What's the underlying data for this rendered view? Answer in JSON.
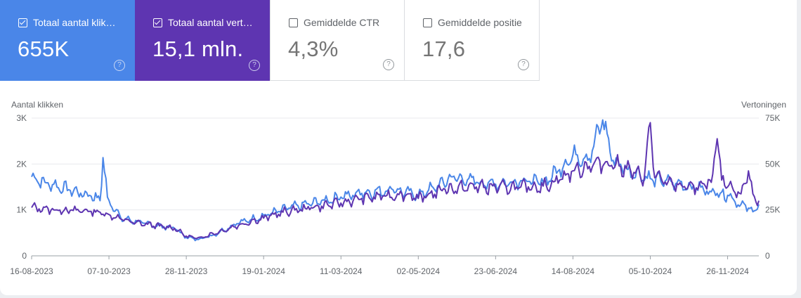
{
  "cards": [
    {
      "label": "Totaal aantal klik…",
      "value": "655K",
      "checked": true,
      "help_icon": "help-circle-icon"
    },
    {
      "label": "Totaal aantal vert…",
      "value": "15,1 mln.",
      "checked": true,
      "help_icon": "help-circle-icon"
    },
    {
      "label": "Gemiddelde CTR",
      "value": "4,3%",
      "checked": false,
      "help_icon": "help-circle-icon"
    },
    {
      "label": "Gemiddelde positie",
      "value": "17,6",
      "checked": false,
      "help_icon": "help-circle-icon"
    }
  ],
  "colors": {
    "clicks": "#5e35b1",
    "impressions": "#4a86e8"
  },
  "chart_data": {
    "type": "line",
    "ylabel_left": "Aantal klikken",
    "ylabel_right": "Vertoningen",
    "left_axis": {
      "min": 0,
      "max": 3000,
      "ticks": [
        0,
        1000,
        2000,
        3000
      ],
      "tick_labels": [
        "0",
        "1K",
        "2K",
        "3K"
      ]
    },
    "right_axis": {
      "min": 0,
      "max": 75000,
      "ticks": [
        0,
        25000,
        50000,
        75000
      ],
      "tick_labels": [
        "0",
        "25K",
        "50K",
        "75K"
      ]
    },
    "x_start": "2023-08-16",
    "x_end": "2024-12-17",
    "x_ticks": [
      "2023-08-16",
      "2023-10-07",
      "2023-11-28",
      "2024-01-19",
      "2024-03-11",
      "2024-05-02",
      "2024-06-23",
      "2024-08-14",
      "2024-10-05",
      "2024-11-26"
    ],
    "x_tick_labels": [
      "16-08-2023",
      "07-10-2023",
      "28-11-2023",
      "19-01-2024",
      "11-03-2024",
      "02-05-2024",
      "23-06-2024",
      "14-08-2024",
      "05-10-2024",
      "26-11-2024"
    ],
    "grid": true,
    "legend": "none",
    "series": [
      {
        "key": "clicks",
        "axis": "left",
        "points": [
          [
            "2023-08-16",
            1050
          ],
          [
            "2023-09-01",
            1000
          ],
          [
            "2023-09-15",
            1000
          ],
          [
            "2023-10-01",
            950
          ],
          [
            "2023-10-07",
            900
          ],
          [
            "2023-10-15",
            800
          ],
          [
            "2023-10-25",
            720
          ],
          [
            "2023-11-10",
            650
          ],
          [
            "2023-11-20",
            600
          ],
          [
            "2023-11-28",
            430
          ],
          [
            "2023-12-05",
            380
          ],
          [
            "2023-12-20",
            520
          ],
          [
            "2024-01-05",
            700
          ],
          [
            "2024-01-19",
            820
          ],
          [
            "2024-02-01",
            950
          ],
          [
            "2024-02-20",
            1050
          ],
          [
            "2024-03-11",
            1150
          ],
          [
            "2024-03-25",
            1250
          ],
          [
            "2024-04-10",
            1300
          ],
          [
            "2024-04-25",
            1350
          ],
          [
            "2024-05-02",
            1250
          ],
          [
            "2024-05-20",
            1450
          ],
          [
            "2024-06-10",
            1500
          ],
          [
            "2024-06-23",
            1480
          ],
          [
            "2024-07-10",
            1500
          ],
          [
            "2024-07-25",
            1520
          ],
          [
            "2024-08-05",
            1650
          ],
          [
            "2024-08-14",
            1850
          ],
          [
            "2024-08-25",
            1950
          ],
          [
            "2024-09-05",
            2050
          ],
          [
            "2024-09-15",
            1950
          ],
          [
            "2024-09-25",
            1800
          ],
          [
            "2024-10-01",
            1700
          ],
          [
            "2024-10-05",
            2900
          ],
          [
            "2024-10-08",
            1700
          ],
          [
            "2024-10-20",
            1550
          ],
          [
            "2024-11-05",
            1480
          ],
          [
            "2024-11-15",
            1600
          ],
          [
            "2024-11-19",
            2550
          ],
          [
            "2024-11-22",
            1650
          ],
          [
            "2024-11-26",
            1500
          ],
          [
            "2024-12-05",
            1350
          ],
          [
            "2024-12-10",
            1850
          ],
          [
            "2024-12-13",
            1350
          ],
          [
            "2024-12-17",
            1200
          ]
        ]
      },
      {
        "key": "impressions",
        "axis": "right",
        "points": [
          [
            "2023-08-16",
            43000
          ],
          [
            "2023-08-25",
            40000
          ],
          [
            "2023-09-10",
            36000
          ],
          [
            "2023-09-25",
            32500
          ],
          [
            "2023-10-01",
            30000
          ],
          [
            "2023-10-03",
            53500
          ],
          [
            "2023-10-06",
            32000
          ],
          [
            "2023-10-15",
            20500
          ],
          [
            "2023-11-01",
            17500
          ],
          [
            "2023-11-20",
            15000
          ],
          [
            "2023-11-28",
            10000
          ],
          [
            "2023-12-05",
            9000
          ],
          [
            "2023-12-15",
            11000
          ],
          [
            "2024-01-01",
            17500
          ],
          [
            "2024-01-19",
            22000
          ],
          [
            "2024-02-05",
            26000
          ],
          [
            "2024-03-11",
            32000
          ],
          [
            "2024-03-25",
            34000
          ],
          [
            "2024-04-15",
            36000
          ],
          [
            "2024-05-02",
            33000
          ],
          [
            "2024-05-15",
            38000
          ],
          [
            "2024-05-25",
            43000
          ],
          [
            "2024-06-10",
            40000
          ],
          [
            "2024-06-23",
            39000
          ],
          [
            "2024-07-10",
            41000
          ],
          [
            "2024-07-25",
            40000
          ],
          [
            "2024-08-05",
            47000
          ],
          [
            "2024-08-14",
            55000
          ],
          [
            "2024-08-25",
            53000
          ],
          [
            "2024-09-03",
            74000
          ],
          [
            "2024-09-10",
            52000
          ],
          [
            "2024-09-20",
            47000
          ],
          [
            "2024-10-05",
            42000
          ],
          [
            "2024-10-20",
            40000
          ],
          [
            "2024-11-05",
            37000
          ],
          [
            "2024-11-19",
            34000
          ],
          [
            "2024-11-26",
            33000
          ],
          [
            "2024-12-05",
            28000
          ],
          [
            "2024-12-10",
            26000
          ],
          [
            "2024-12-13",
            24000
          ],
          [
            "2024-12-17",
            28000
          ]
        ]
      }
    ]
  }
}
